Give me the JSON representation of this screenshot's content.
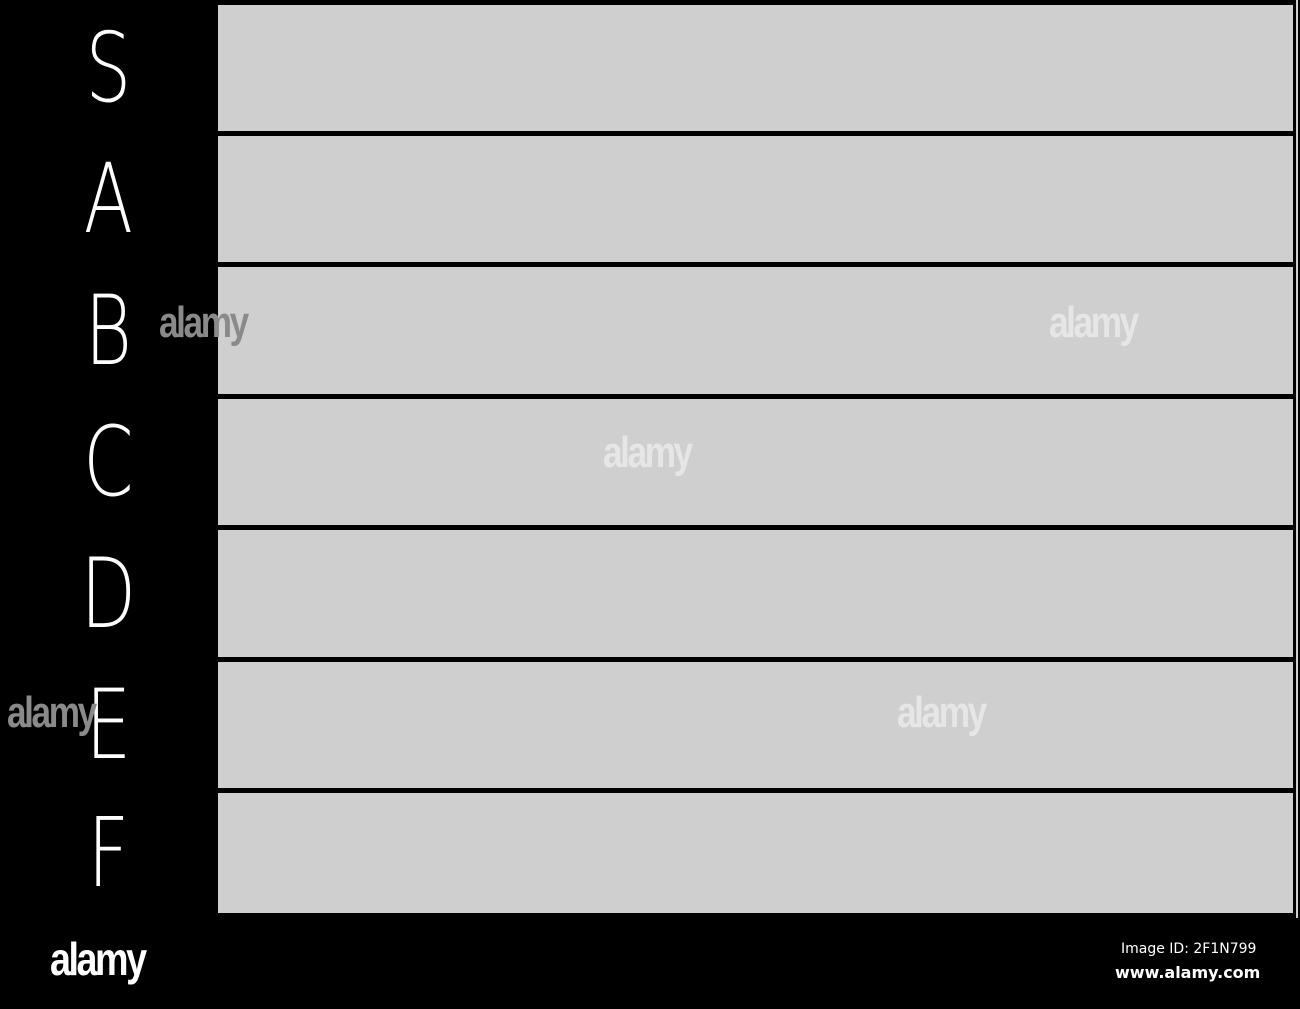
{
  "tiers": [
    {
      "label": "S"
    },
    {
      "label": "A"
    },
    {
      "label": "B"
    },
    {
      "label": "C"
    },
    {
      "label": "D"
    },
    {
      "label": "E"
    },
    {
      "label": "F"
    }
  ],
  "colors": {
    "row_fill": "#cfcfcf",
    "label_bg": "#000000",
    "label_text": "#ffffff"
  },
  "watermark": {
    "logo": "alamy",
    "image_id": "Image ID: 2F1N799",
    "site": "www.alamy.com"
  }
}
